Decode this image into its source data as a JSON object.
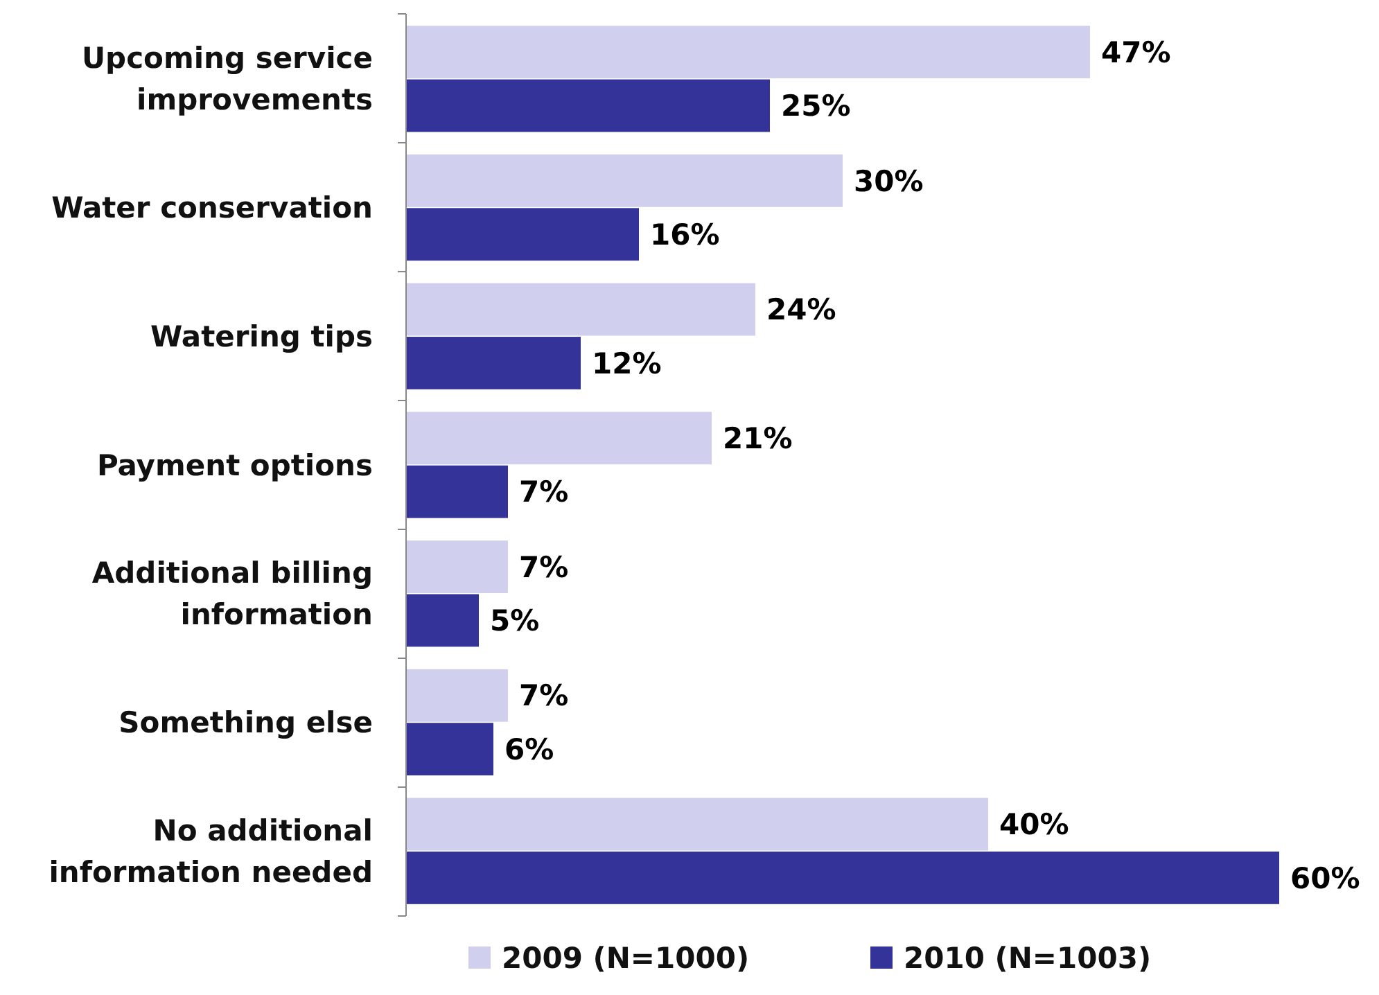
{
  "chart_data": {
    "type": "bar",
    "orientation": "horizontal",
    "categories": [
      "Upcoming service improvements",
      "Water conservation",
      "Watering tips",
      "Payment options",
      "Additional billing information",
      "Something else",
      "No additional information needed"
    ],
    "series": [
      {
        "name": "2009 (N=1000)",
        "color": "#d0d0ee",
        "values": [
          47,
          30,
          24,
          21,
          7,
          7,
          40
        ],
        "value_labels": [
          "47%",
          "30%",
          "24%",
          "21%",
          "7%",
          "7%",
          "40%"
        ]
      },
      {
        "name": "2010 (N=1003)",
        "color": "#333399",
        "values": [
          25,
          16,
          12,
          7,
          5,
          6,
          60
        ],
        "value_labels": [
          "25%",
          "16%",
          "12%",
          "7%",
          "5%",
          "6%",
          "60%"
        ]
      }
    ],
    "legend": "bottom"
  }
}
